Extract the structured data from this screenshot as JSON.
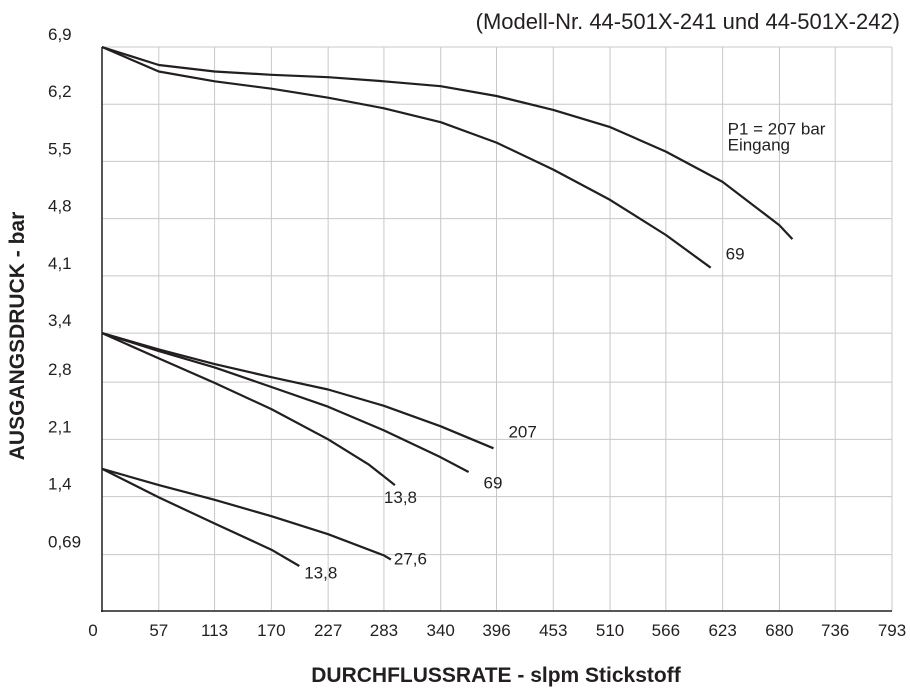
{
  "chart_data": {
    "type": "line",
    "title": "",
    "subtitle": "(Modell-Nr. 44-501X-241 und 44-501X-242)",
    "xlabel": "DURCHFLUSSRATE - slpm Stickstoff",
    "ylabel": "AUSGANGSDRUCK - bar",
    "xlim": [
      0,
      793
    ],
    "ylim": [
      0,
      6.9
    ],
    "grid": true,
    "xticks": [
      0,
      57,
      113,
      170,
      227,
      283,
      340,
      396,
      453,
      510,
      566,
      623,
      680,
      736,
      793
    ],
    "xtick_labels": [
      "0",
      "57",
      "113",
      "170",
      "227",
      "283",
      "340",
      "396",
      "453",
      "510",
      "566",
      "623",
      "680",
      "736",
      "793"
    ],
    "yticks": [
      0.69,
      1.4,
      2.1,
      2.8,
      3.4,
      4.1,
      4.8,
      5.5,
      6.2,
      6.9
    ],
    "ytick_labels": [
      "0,69",
      "1,4",
      "2,1",
      "2,8",
      "3,4",
      "4,1",
      "4,8",
      "5,5",
      "6,2",
      "6,9"
    ],
    "series": [
      {
        "name": "P1 = 207 bar Eingang",
        "x": [
          0,
          57,
          113,
          170,
          227,
          283,
          340,
          396,
          453,
          510,
          566,
          623,
          680,
          693
        ],
        "y": [
          6.9,
          6.68,
          6.6,
          6.56,
          6.53,
          6.48,
          6.42,
          6.3,
          6.13,
          5.92,
          5.62,
          5.25,
          4.72,
          4.55
        ]
      },
      {
        "name": "69",
        "x": [
          0,
          57,
          113,
          170,
          227,
          283,
          340,
          396,
          453,
          510,
          566,
          611
        ],
        "y": [
          6.9,
          6.6,
          6.48,
          6.39,
          6.28,
          6.15,
          5.98,
          5.73,
          5.4,
          5.03,
          4.6,
          4.2
        ]
      },
      {
        "name": "207",
        "x": [
          0,
          57,
          113,
          170,
          227,
          283,
          340,
          393
        ],
        "y": [
          3.4,
          3.2,
          3.02,
          2.86,
          2.71,
          2.51,
          2.26,
          1.99
        ]
      },
      {
        "name": "69",
        "x": [
          0,
          57,
          113,
          170,
          227,
          283,
          340,
          368
        ],
        "y": [
          3.4,
          3.18,
          2.98,
          2.74,
          2.5,
          2.21,
          1.88,
          1.7
        ]
      },
      {
        "name": "13,8",
        "x": [
          0,
          57,
          113,
          170,
          227,
          268,
          294
        ],
        "y": [
          3.4,
          3.09,
          2.79,
          2.47,
          2.1,
          1.79,
          1.54
        ]
      },
      {
        "name": "27,6",
        "x": [
          0,
          57,
          113,
          170,
          227,
          283,
          290
        ],
        "y": [
          1.74,
          1.54,
          1.36,
          1.16,
          0.94,
          0.68,
          0.63
        ]
      },
      {
        "name": "13,8",
        "x": [
          0,
          57,
          113,
          170,
          198
        ],
        "y": [
          1.74,
          1.39,
          1.07,
          0.75,
          0.55
        ]
      }
    ],
    "annotations": [
      {
        "line1": "P1 = 207 bar",
        "line2": "Eingang",
        "x": 628,
        "y": 5.83
      },
      {
        "text": "69",
        "x": 626,
        "y": 4.3
      },
      {
        "text": "207",
        "x": 408,
        "y": 2.12
      },
      {
        "text": "69",
        "x": 383,
        "y": 1.5
      },
      {
        "text": "13,8",
        "x": 283,
        "y": 1.32
      },
      {
        "text": "27,6",
        "x": 293,
        "y": 0.57
      },
      {
        "text": "13,8",
        "x": 203,
        "y": 0.4
      }
    ],
    "colors": {
      "line": "#231f20",
      "grid": "#c8c8c8",
      "axis": "#231f20"
    }
  }
}
